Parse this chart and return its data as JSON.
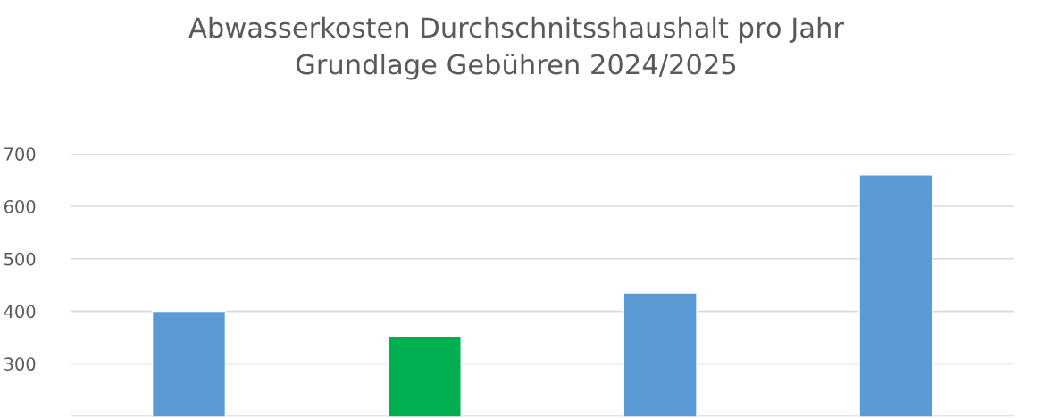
{
  "chart_data": {
    "type": "bar",
    "title": "Abwasserkosten Durchschnitsshaushalt pro Jahr\nGrundlage Gebühren 2024/2025",
    "categories": [
      null,
      null,
      null,
      null
    ],
    "values": [
      400,
      353,
      435,
      660
    ],
    "colors": [
      "#5b9bd5",
      "#00b050",
      "#5b9bd5",
      "#5b9bd5"
    ],
    "ylim": [
      200,
      700
    ],
    "yticks": [
      {
        "value": 200,
        "label": null
      },
      300,
      400,
      500,
      600,
      700
    ],
    "grid": "y",
    "tick_labels": "y"
  }
}
